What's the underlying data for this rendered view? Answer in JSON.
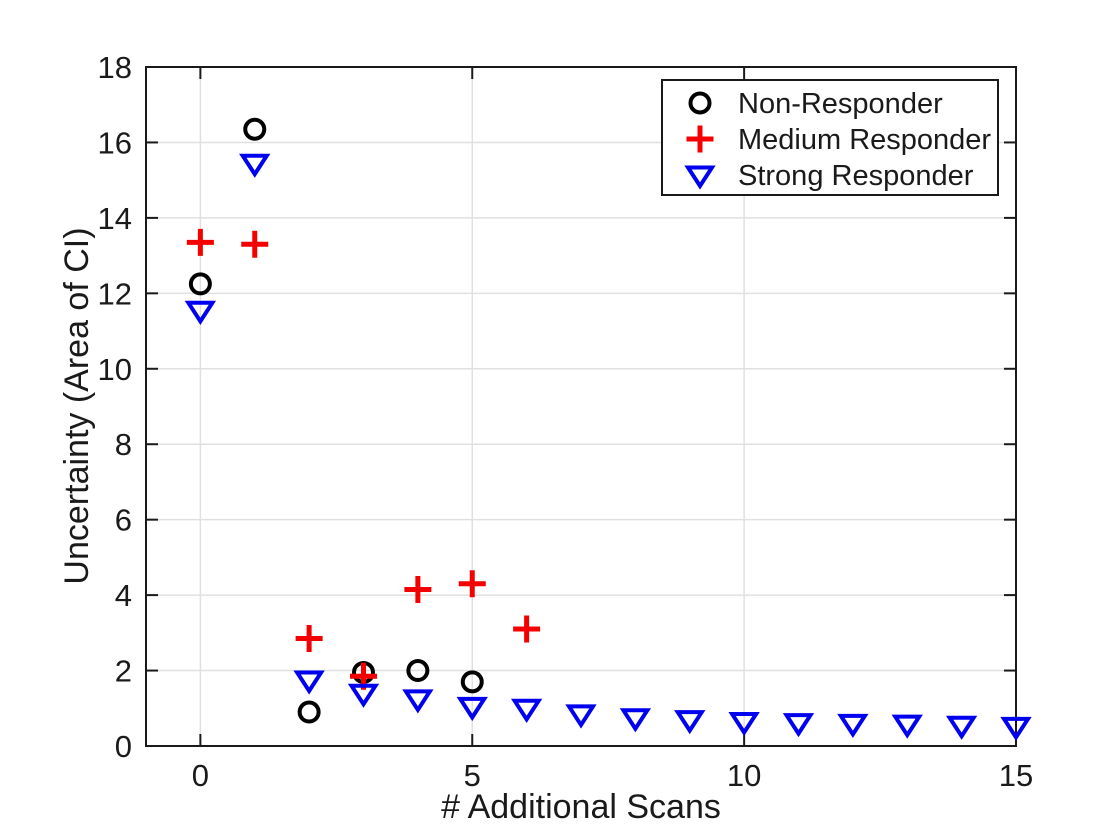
{
  "chart_data": {
    "type": "scatter",
    "title": "",
    "xlabel": "# Additional Scans",
    "ylabel": "Uncertainty (Area of CI)",
    "xlim": [
      -1,
      15
    ],
    "ylim": [
      0,
      18
    ],
    "xticks": [
      0,
      5,
      10,
      15
    ],
    "yticks": [
      0,
      2,
      4,
      6,
      8,
      10,
      12,
      14,
      16,
      18
    ],
    "grid": true,
    "legend_position": "top-right",
    "series": [
      {
        "name": "Non-Responder",
        "marker": "circle",
        "color": "#000000",
        "x": [
          0,
          1,
          2,
          3,
          4,
          5
        ],
        "y": [
          12.25,
          16.35,
          0.9,
          1.95,
          2.0,
          1.7
        ]
      },
      {
        "name": "Medium Responder",
        "marker": "plus",
        "color": "#f40000",
        "x": [
          0,
          1,
          2,
          3,
          4,
          5,
          6
        ],
        "y": [
          13.35,
          13.3,
          2.85,
          1.85,
          4.15,
          4.3,
          3.1
        ]
      },
      {
        "name": "Strong Responder",
        "marker": "triangle-down",
        "color": "#0000f0",
        "x": [
          0,
          1,
          2,
          3,
          4,
          5,
          6,
          7,
          8,
          9,
          10,
          11,
          12,
          13,
          14,
          15
        ],
        "y": [
          11.55,
          15.45,
          1.75,
          1.4,
          1.25,
          1.05,
          1.0,
          0.85,
          0.75,
          0.7,
          0.65,
          0.62,
          0.6,
          0.58,
          0.55,
          0.52
        ]
      }
    ],
    "grid_color": "#e0e0e0",
    "axis_color": "#1a1a1a",
    "background_color": "#ffffff"
  }
}
